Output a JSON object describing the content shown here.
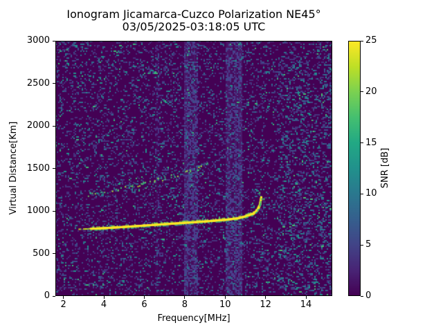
{
  "figure": {
    "title": "Ionogram Jicamarca-Cuzco Polarization NE45°",
    "subtitle": "03/05/2025-03:18:05 UTC"
  },
  "chart_data": {
    "type": "heatmap",
    "title": "Ionogram Jicamarca-Cuzco Polarization NE45°",
    "subtitle": "03/05/2025-03:18:05 UTC",
    "xlabel": "Frequency[MHz]",
    "ylabel": "Virtual Distance[Km]",
    "colorbar_label": "SNR [dB]",
    "colormap": "viridis",
    "xlim": [
      1.6,
      15.3
    ],
    "ylim": [
      0,
      3000
    ],
    "snr_range": [
      0,
      25
    ],
    "xticks": [
      2,
      4,
      6,
      8,
      10,
      12,
      14
    ],
    "yticks": [
      0,
      500,
      1000,
      1500,
      2000,
      2500,
      3000
    ],
    "colorbar_ticks": [
      0,
      5,
      10,
      15,
      20,
      25
    ],
    "colors": {
      "background": "#440154",
      "main_trace": "#fde725",
      "trace_fringe_green": "#7ad151",
      "echo_green": "#5ec962",
      "noise_dim_purple": "#46327e",
      "noise_blue": "#3d4e8a",
      "noise_teal": "#2d708e",
      "noise_bright_teal": "#21918c"
    },
    "main_trace": [
      [
        2.78,
        785
      ],
      [
        3.3,
        790
      ],
      [
        4.0,
        797
      ],
      [
        5.0,
        812
      ],
      [
        6.0,
        828
      ],
      [
        7.0,
        844
      ],
      [
        8.0,
        860
      ],
      [
        9.0,
        876
      ],
      [
        10.0,
        896
      ],
      [
        10.6,
        912
      ],
      [
        11.0,
        935
      ],
      [
        11.4,
        968
      ],
      [
        11.6,
        1010
      ],
      [
        11.72,
        1070
      ],
      [
        11.79,
        1160
      ]
    ],
    "isolated_dots": [
      [
        11.71,
        1211
      ],
      [
        11.92,
        1138
      ]
    ],
    "second_hop": [
      [
        3.2,
        1190
      ],
      [
        4.0,
        1222
      ],
      [
        5.0,
        1270
      ],
      [
        6.0,
        1318
      ],
      [
        7.0,
        1383
      ],
      [
        8.0,
        1447
      ],
      [
        8.8,
        1512
      ],
      [
        9.15,
        1548
      ]
    ],
    "interference_bands": [
      {
        "f_start": 7.97,
        "f_end": 8.68,
        "strength": "medium"
      },
      {
        "f_start": 10.05,
        "f_end": 10.85,
        "strength": "medium"
      },
      {
        "f_start": 6.55,
        "f_end": 6.78,
        "strength": "faint"
      }
    ],
    "high_noise_region": {
      "f_start": 12.6,
      "f_end": 15.3
    }
  }
}
